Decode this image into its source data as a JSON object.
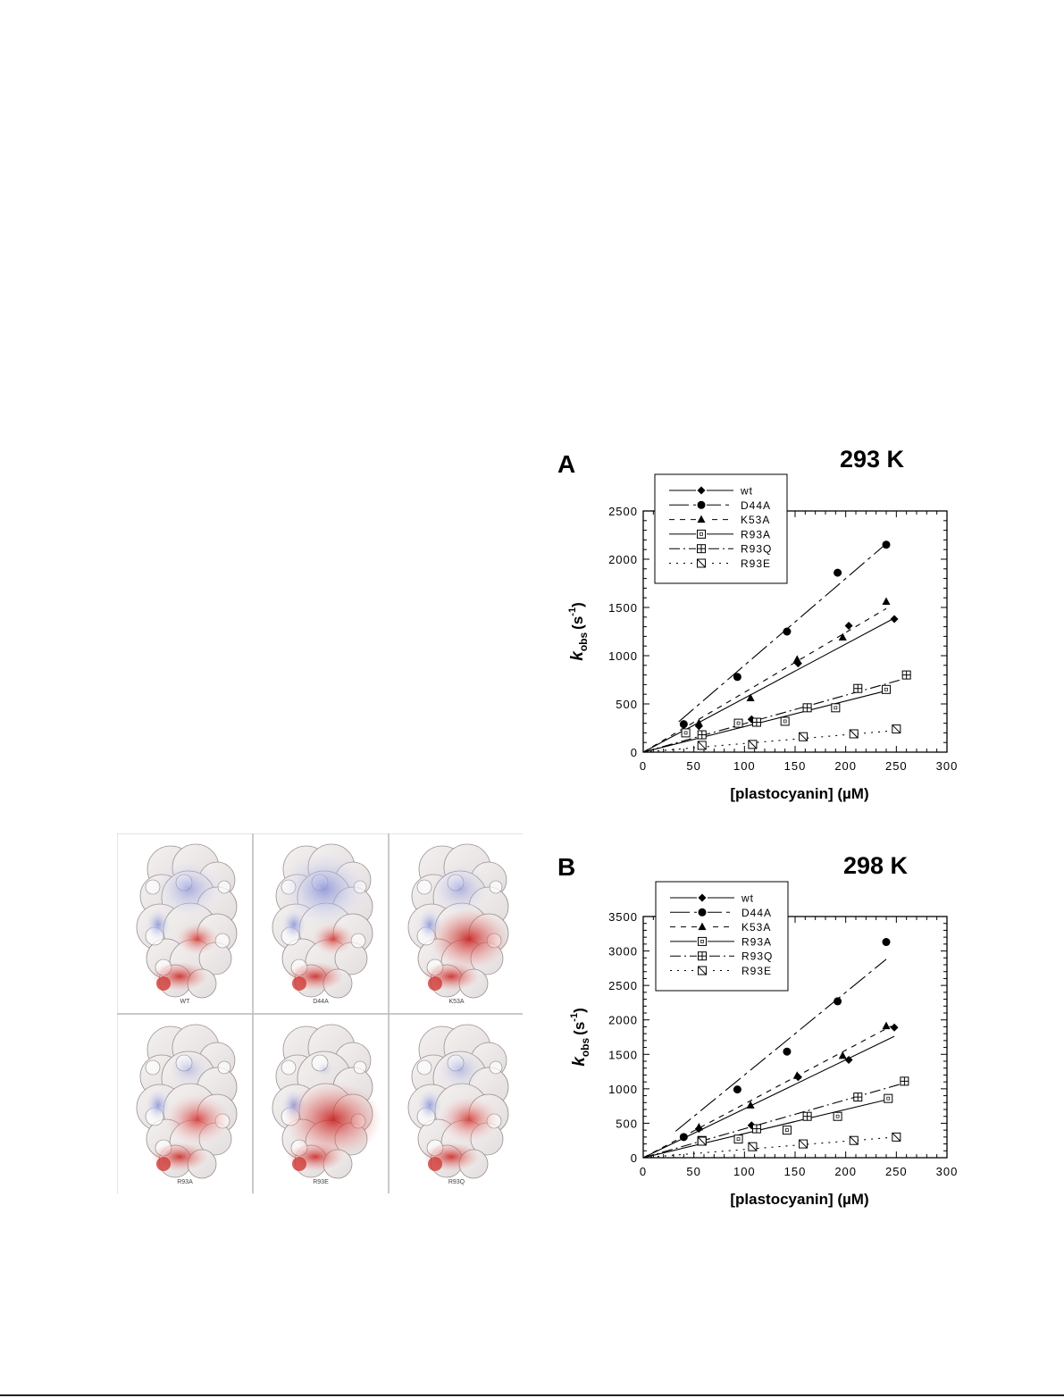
{
  "figure": {
    "structures": {
      "labels": [
        "WT",
        "D44A",
        "K53A",
        "R93A",
        "R93E",
        "R93Q"
      ]
    }
  },
  "chart_data": [
    {
      "type": "scatter",
      "panel": "A",
      "title": "293 K",
      "xlabel": "[plastocyanin] (µM)",
      "ylabel": "k obs (s-1)",
      "xlim": [
        0,
        300
      ],
      "ylim": [
        0,
        2500
      ],
      "xticks": [
        0,
        50,
        100,
        150,
        200,
        250,
        300
      ],
      "yticks": [
        0,
        500,
        1000,
        1500,
        2000,
        2500
      ],
      "legend_position": "top-left",
      "grid": false,
      "series": [
        {
          "name": "wt",
          "marker": "diamond",
          "dash": "",
          "x": [
            55,
            107,
            153,
            203,
            248
          ],
          "y": [
            270,
            340,
            920,
            1310,
            1380
          ],
          "fit_slope": 5.6,
          "fit_xmax": 248
        },
        {
          "name": "D44A",
          "marker": "circle",
          "dash": "22 5 4 5",
          "x": [
            40,
            93,
            142,
            192,
            240
          ],
          "y": [
            290,
            780,
            1250,
            1860,
            2150
          ],
          "fit_slope": 9.0,
          "fit_xmax": 240,
          "fit_xmin": 35
        },
        {
          "name": "K53A",
          "marker": "triangle",
          "dash": "6 6",
          "x": [
            55,
            106,
            152,
            197,
            240
          ],
          "y": [
            300,
            560,
            960,
            1190,
            1560
          ],
          "fit_slope": 6.2,
          "fit_xmax": 240
        },
        {
          "name": "R93A",
          "marker": "square",
          "dash": "",
          "x": [
            42,
            94,
            140,
            190,
            240
          ],
          "y": [
            200,
            300,
            320,
            460,
            650
          ],
          "fit_slope": 2.65,
          "fit_xmax": 240
        },
        {
          "name": "R93Q",
          "marker": "square-plus",
          "dash": "12 4 2 4",
          "x": [
            58,
            112,
            162,
            212,
            260
          ],
          "y": [
            180,
            310,
            460,
            660,
            800
          ],
          "fit_slope": 2.95,
          "fit_xmax": 255
        },
        {
          "name": "R93E",
          "marker": "square-slash",
          "dash": "2 6",
          "x": [
            58,
            108,
            158,
            208,
            250
          ],
          "y": [
            70,
            80,
            160,
            190,
            240
          ],
          "fit_slope": 0.9,
          "fit_xmax": 250
        }
      ]
    },
    {
      "type": "scatter",
      "panel": "B",
      "title": "298 K",
      "xlabel": "[plastocyanin] (µM)",
      "ylabel": "k obs (s-1)",
      "xlim": [
        0,
        300
      ],
      "ylim": [
        0,
        3500
      ],
      "xticks": [
        0,
        50,
        100,
        150,
        200,
        250,
        300
      ],
      "yticks": [
        0,
        500,
        1000,
        1500,
        2000,
        2500,
        3000,
        3500
      ],
      "legend_position": "top-left",
      "grid": false,
      "series": [
        {
          "name": "wt",
          "marker": "diamond",
          "dash": "",
          "x": [
            55,
            107,
            153,
            203,
            248
          ],
          "y": [
            420,
            470,
            1170,
            1420,
            1890
          ],
          "fit_slope": 7.1,
          "fit_xmax": 248
        },
        {
          "name": "D44A",
          "marker": "circle",
          "dash": "22 5 4 5",
          "x": [
            40,
            93,
            142,
            192,
            240
          ],
          "y": [
            300,
            990,
            1540,
            2270,
            3130
          ],
          "fit_slope": 12.0,
          "fit_xmax": 240,
          "fit_xmin": 32
        },
        {
          "name": "K53A",
          "marker": "triangle",
          "dash": "6 6",
          "x": [
            55,
            106,
            152,
            197,
            240
          ],
          "y": [
            440,
            760,
            1190,
            1480,
            1910
          ],
          "fit_slope": 7.8,
          "fit_xmax": 245
        },
        {
          "name": "R93A",
          "marker": "square",
          "dash": "",
          "x": [
            58,
            94,
            142,
            192,
            242
          ],
          "y": [
            240,
            270,
            400,
            600,
            860
          ],
          "fit_slope": 3.5,
          "fit_xmax": 245
        },
        {
          "name": "R93Q",
          "marker": "square-plus",
          "dash": "12 4 2 4",
          "x": [
            58,
            112,
            162,
            212,
            258
          ],
          "y": [
            250,
            420,
            600,
            880,
            1110
          ],
          "fit_slope": 4.2,
          "fit_xmax": 255
        },
        {
          "name": "R93E",
          "marker": "square-slash",
          "dash": "2 6",
          "x": [
            58,
            108,
            158,
            208,
            250
          ],
          "y": [
            240,
            160,
            200,
            250,
            300
          ],
          "fit_slope": 1.2,
          "fit_xmax": 250
        }
      ]
    }
  ]
}
